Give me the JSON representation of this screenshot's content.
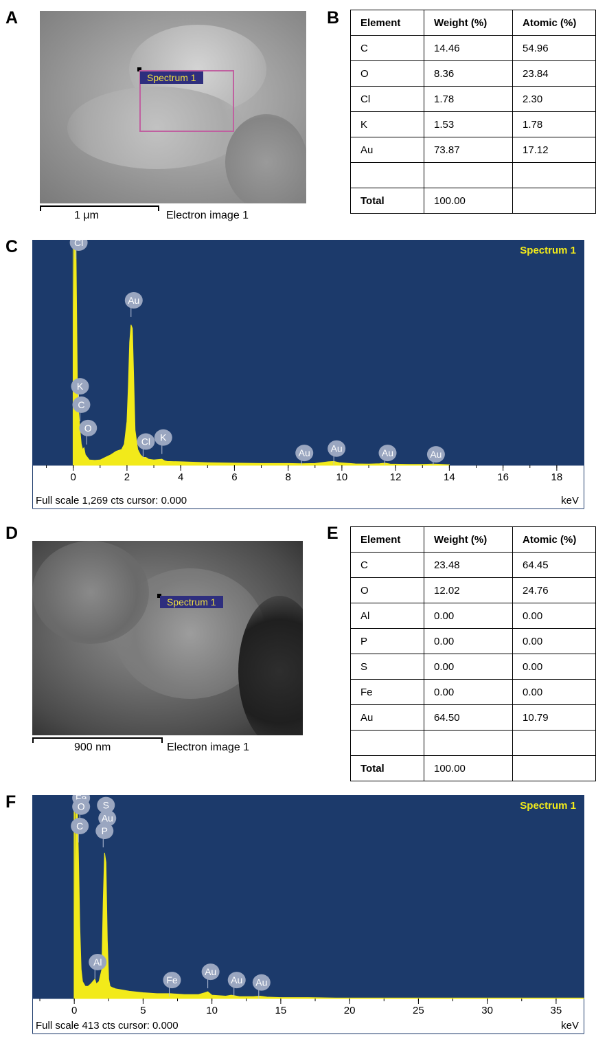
{
  "panels": {
    "a": {
      "letter": "A",
      "scale_label": "1 μm",
      "image_label": "Electron image 1",
      "spectrum_tag": "Spectrum 1"
    },
    "b": {
      "letter": "B"
    },
    "c": {
      "letter": "C"
    },
    "d": {
      "letter": "D",
      "scale_label": "900 nm",
      "image_label": "Electron image 1",
      "spectrum_tag": "Spectrum 1"
    },
    "e": {
      "letter": "E"
    },
    "f": {
      "letter": "F"
    }
  },
  "chart_data": [
    {
      "type": "table",
      "panel": "B",
      "columns": [
        "Element",
        "Weight (%)",
        "Atomic (%)"
      ],
      "rows": [
        [
          "C",
          "14.46",
          "54.96"
        ],
        [
          "O",
          "8.36",
          "23.84"
        ],
        [
          "Cl",
          "1.78",
          "2.30"
        ],
        [
          "K",
          "1.53",
          "1.78"
        ],
        [
          "Au",
          "73.87",
          "17.12"
        ],
        [
          "",
          "",
          ""
        ],
        [
          "Total",
          "100.00",
          ""
        ]
      ]
    },
    {
      "type": "line",
      "panel": "C",
      "title": "Spectrum 1",
      "xlabel": "keV",
      "footer": "Full scale 1,269 cts cursor: 0.000",
      "xlim": [
        -1.5,
        19.0
      ],
      "ylim": [
        0,
        1269
      ],
      "xticks": [
        0,
        2,
        4,
        6,
        8,
        10,
        12,
        14,
        16,
        18
      ],
      "series": [
        {
          "x": [
            0.0,
            0.05,
            0.1,
            0.15,
            0.2,
            0.25,
            0.3,
            0.35,
            0.4,
            0.45,
            0.5,
            0.55,
            0.6,
            0.8,
            1.0,
            1.2,
            1.4,
            1.6,
            1.8,
            1.9,
            2.0,
            2.05,
            2.1,
            2.15,
            2.2,
            2.25,
            2.3,
            2.4,
            2.5,
            2.6,
            2.7,
            2.8,
            3.0,
            3.3,
            3.4,
            3.5,
            4.0,
            5.0,
            6.0,
            7.0,
            8.0,
            8.5,
            9.0,
            9.5,
            9.7,
            9.9,
            10.5,
            11.0,
            11.4,
            11.6,
            11.8,
            12.5,
            13.0,
            13.4,
            13.6,
            14.0
          ],
          "y": [
            0,
            1269,
            1269,
            500,
            300,
            200,
            120,
            90,
            100,
            60,
            50,
            40,
            30,
            28,
            30,
            45,
            60,
            80,
            90,
            120,
            250,
            450,
            700,
            800,
            780,
            500,
            200,
            90,
            60,
            45,
            45,
            35,
            30,
            35,
            25,
            22,
            20,
            15,
            12,
            10,
            10,
            9,
            10,
            20,
            22,
            15,
            8,
            7,
            9,
            12,
            7,
            5,
            5,
            7,
            6,
            3
          ]
        }
      ],
      "peak_labels": [
        {
          "label": "Cl",
          "x": 0.1,
          "y": 1269
        },
        {
          "label": "Au",
          "x": 2.15,
          "y": 940
        },
        {
          "label": "K",
          "x": 0.2,
          "y": 450
        },
        {
          "label": "C",
          "x": 0.25,
          "y": 345
        },
        {
          "label": "O",
          "x": 0.5,
          "y": 212
        },
        {
          "label": "Cl",
          "x": 2.6,
          "y": 135
        },
        {
          "label": "K",
          "x": 3.3,
          "y": 158
        },
        {
          "label": "Au",
          "x": 8.5,
          "y": 70
        },
        {
          "label": "Au",
          "x": 9.7,
          "y": 95
        },
        {
          "label": "Au",
          "x": 11.6,
          "y": 70
        },
        {
          "label": "Au",
          "x": 13.4,
          "y": 62
        }
      ]
    },
    {
      "type": "table",
      "panel": "E",
      "columns": [
        "Element",
        "Weight (%)",
        "Atomic (%)"
      ],
      "rows": [
        [
          "C",
          "23.48",
          "64.45"
        ],
        [
          "O",
          "12.02",
          "24.76"
        ],
        [
          "Al",
          "0.00",
          "0.00"
        ],
        [
          "P",
          "0.00",
          "0.00"
        ],
        [
          "S",
          "0.00",
          "0.00"
        ],
        [
          "Fe",
          "0.00",
          "0.00"
        ],
        [
          "Au",
          "64.50",
          "10.79"
        ],
        [
          "",
          "",
          ""
        ],
        [
          "Total",
          "100.00",
          ""
        ]
      ]
    },
    {
      "type": "line",
      "panel": "F",
      "title": "Spectrum 1",
      "xlabel": "keV",
      "footer": "Full scale 413 cts cursor: 0.000",
      "xlim": [
        -3.0,
        37.0
      ],
      "ylim": [
        0,
        413
      ],
      "xticks": [
        0,
        5,
        10,
        15,
        20,
        25,
        30,
        35
      ],
      "series": [
        {
          "x": [
            0.0,
            0.1,
            0.2,
            0.3,
            0.4,
            0.5,
            0.6,
            0.8,
            1.0,
            1.2,
            1.5,
            1.6,
            1.8,
            2.0,
            2.1,
            2.2,
            2.3,
            2.4,
            2.5,
            2.6,
            2.8,
            3.0,
            4.0,
            5.0,
            6.0,
            7.0,
            8.0,
            9.0,
            9.5,
            9.7,
            10.0,
            11.0,
            11.4,
            11.6,
            12.0,
            13.0,
            13.5,
            14.0,
            15.0,
            17.0,
            19.0,
            22.0,
            25.0,
            30.0,
            35.0,
            37.0
          ],
          "y": [
            0,
            413,
            413,
            300,
            150,
            60,
            35,
            25,
            25,
            30,
            40,
            30,
            35,
            60,
            200,
            300,
            280,
            120,
            40,
            25,
            22,
            20,
            15,
            12,
            10,
            10,
            8,
            8,
            12,
            14,
            7,
            5,
            7,
            6,
            4,
            4,
            5,
            3,
            2,
            2,
            1,
            1,
            1,
            1,
            1,
            1
          ]
        }
      ],
      "peak_labels": [
        {
          "label": "Fe",
          "x": 0.3,
          "y": 413
        },
        {
          "label": "O",
          "x": 0.4,
          "y": 395
        },
        {
          "label": "S",
          "x": 2.2,
          "y": 398
        },
        {
          "label": "Au",
          "x": 2.2,
          "y": 371
        },
        {
          "label": "C",
          "x": 0.3,
          "y": 355
        },
        {
          "label": "P",
          "x": 2.1,
          "y": 345
        },
        {
          "label": "Al",
          "x": 1.5,
          "y": 75
        },
        {
          "label": "Fe",
          "x": 6.9,
          "y": 38
        },
        {
          "label": "Au",
          "x": 9.7,
          "y": 55
        },
        {
          "label": "Au",
          "x": 11.6,
          "y": 38
        },
        {
          "label": "Au",
          "x": 13.4,
          "y": 33
        }
      ]
    }
  ]
}
